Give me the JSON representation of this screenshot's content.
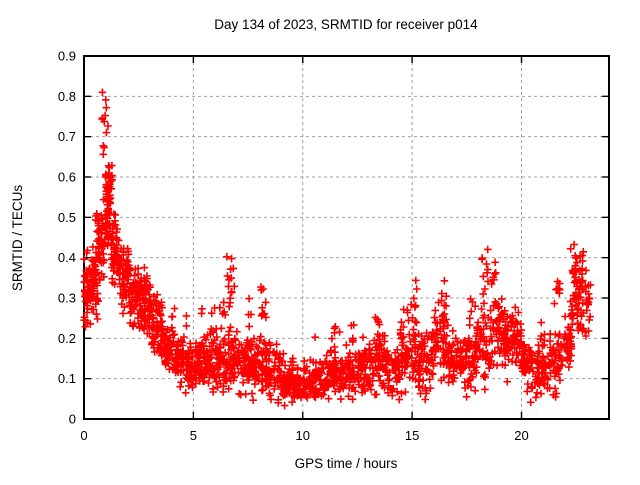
{
  "chart_data": {
    "type": "scatter",
    "title": "Day 134 of 2023, SRMTID for receiver p014",
    "xlabel": "GPS time / hours",
    "ylabel": "SRMTID / TECUs",
    "xlim": [
      0,
      24
    ],
    "ylim": [
      0,
      0.9
    ],
    "xticks": [
      {
        "value": 0,
        "label": "0"
      },
      {
        "value": 5,
        "label": "5"
      },
      {
        "value": 10,
        "label": "10"
      },
      {
        "value": 15,
        "label": "15"
      },
      {
        "value": 20,
        "label": "20"
      }
    ],
    "yticks": [
      {
        "value": 0,
        "label": "0"
      },
      {
        "value": 0.1,
        "label": "0.1"
      },
      {
        "value": 0.2,
        "label": "0.2"
      },
      {
        "value": 0.3,
        "label": "0.3"
      },
      {
        "value": 0.4,
        "label": "0.4"
      },
      {
        "value": 0.5,
        "label": "0.5"
      },
      {
        "value": 0.6,
        "label": "0.6"
      },
      {
        "value": 0.7,
        "label": "0.7"
      },
      {
        "value": 0.8,
        "label": "0.8"
      },
      {
        "value": 0.9,
        "label": "0.9"
      }
    ],
    "grid": true,
    "grid_style": "dashed",
    "legend": "none",
    "marker": "plus",
    "colors": {
      "points": "#ff0000",
      "grid": "#a0a0a0",
      "axes": "#000000",
      "background": "#ffffff",
      "text": "#000000"
    },
    "summary": {
      "points_total_approx": 2300,
      "data_span_hours": [
        0.0,
        23.15
      ],
      "overall_max": {
        "hour": 0.85,
        "value": 0.82
      },
      "high_tail_hours_0.8_to_1.1": [
        0.66,
        0.82
      ],
      "quiet_band": {
        "hours": [
          8.5,
          15.0
        ],
        "value_range": [
          0.03,
          0.18
        ]
      },
      "evening_max": {
        "hour": 22.4,
        "value": 0.45
      },
      "notable_spike_hours": [
        0.9,
        6.7,
        8.2,
        15.1,
        16.4,
        18.3,
        18.9,
        22.4
      ]
    },
    "point_cloud": {
      "bins_format": "[hour_start, hour_end, count, value_center, value_spread]",
      "bins": [
        [
          0.0,
          0.35,
          55,
          0.31,
          0.07
        ],
        [
          0.35,
          0.65,
          50,
          0.34,
          0.07
        ],
        [
          0.65,
          0.95,
          48,
          0.44,
          0.08
        ],
        [
          0.95,
          1.25,
          52,
          0.52,
          0.07
        ],
        [
          1.0,
          1.32,
          18,
          0.59,
          0.025
        ],
        [
          1.25,
          1.6,
          48,
          0.42,
          0.06
        ],
        [
          1.6,
          2.1,
          62,
          0.35,
          0.055
        ],
        [
          2.1,
          2.6,
          58,
          0.3,
          0.05
        ],
        [
          2.6,
          3.1,
          55,
          0.27,
          0.05
        ],
        [
          3.1,
          3.6,
          55,
          0.22,
          0.05
        ],
        [
          3.6,
          4.1,
          55,
          0.17,
          0.04
        ],
        [
          4.1,
          4.6,
          52,
          0.145,
          0.04
        ],
        [
          4.6,
          5.1,
          52,
          0.13,
          0.04
        ],
        [
          5.1,
          5.6,
          50,
          0.14,
          0.045
        ],
        [
          5.6,
          6.1,
          50,
          0.14,
          0.05
        ],
        [
          6.1,
          6.6,
          46,
          0.15,
          0.05
        ],
        [
          6.6,
          7.1,
          50,
          0.14,
          0.05
        ],
        [
          7.1,
          7.7,
          55,
          0.14,
          0.05
        ],
        [
          7.7,
          8.3,
          55,
          0.13,
          0.05
        ],
        [
          8.3,
          9.0,
          62,
          0.115,
          0.045
        ],
        [
          9.0,
          9.6,
          58,
          0.1,
          0.04
        ],
        [
          9.6,
          10.3,
          62,
          0.085,
          0.035
        ],
        [
          10.3,
          11.0,
          62,
          0.095,
          0.04
        ],
        [
          11.0,
          11.7,
          62,
          0.105,
          0.04
        ],
        [
          11.7,
          12.4,
          62,
          0.115,
          0.045
        ],
        [
          12.4,
          13.1,
          58,
          0.125,
          0.045
        ],
        [
          13.1,
          13.8,
          58,
          0.14,
          0.05
        ],
        [
          13.8,
          14.5,
          55,
          0.12,
          0.045
        ],
        [
          14.5,
          15.2,
          55,
          0.16,
          0.06
        ],
        [
          15.2,
          15.9,
          55,
          0.15,
          0.055
        ],
        [
          15.9,
          16.6,
          55,
          0.19,
          0.06
        ],
        [
          16.6,
          17.3,
          55,
          0.15,
          0.05
        ],
        [
          17.3,
          17.9,
          50,
          0.14,
          0.05
        ],
        [
          17.9,
          18.6,
          55,
          0.17,
          0.06
        ],
        [
          18.6,
          19.3,
          52,
          0.2,
          0.07
        ],
        [
          19.3,
          20.0,
          55,
          0.18,
          0.055
        ],
        [
          20.0,
          20.6,
          52,
          0.13,
          0.045
        ],
        [
          20.6,
          21.3,
          55,
          0.12,
          0.045
        ],
        [
          21.3,
          21.9,
          50,
          0.14,
          0.05
        ],
        [
          21.9,
          22.3,
          35,
          0.19,
          0.06
        ],
        [
          22.3,
          23.15,
          60,
          0.29,
          0.07
        ]
      ],
      "spikes_format": "[hour_start, hour_end, count, value_min, value_max]",
      "spikes": [
        [
          0.8,
          1.12,
          12,
          0.655,
          0.825
        ],
        [
          0.5,
          0.75,
          6,
          0.45,
          0.53
        ],
        [
          1.9,
          2.15,
          8,
          0.3,
          0.42
        ],
        [
          2.7,
          3.0,
          8,
          0.28,
          0.38
        ],
        [
          3.2,
          3.5,
          6,
          0.22,
          0.3
        ],
        [
          3.95,
          4.15,
          5,
          0.2,
          0.28
        ],
        [
          4.65,
          4.78,
          2,
          0.23,
          0.26
        ],
        [
          5.35,
          5.5,
          2,
          0.24,
          0.28
        ],
        [
          5.75,
          6.05,
          6,
          0.2,
          0.3
        ],
        [
          6.2,
          6.5,
          6,
          0.2,
          0.3
        ],
        [
          6.5,
          6.9,
          15,
          0.27,
          0.43
        ],
        [
          7.45,
          7.65,
          4,
          0.22,
          0.3
        ],
        [
          8.05,
          8.35,
          10,
          0.24,
          0.37
        ],
        [
          10.5,
          10.62,
          1,
          0.2,
          0.21
        ],
        [
          11.2,
          11.7,
          8,
          0.16,
          0.23
        ],
        [
          12.1,
          12.4,
          5,
          0.17,
          0.24
        ],
        [
          13.3,
          13.65,
          8,
          0.18,
          0.27
        ],
        [
          14.45,
          14.85,
          8,
          0.18,
          0.28
        ],
        [
          14.95,
          15.3,
          10,
          0.2,
          0.4
        ],
        [
          16.2,
          16.7,
          14,
          0.22,
          0.35
        ],
        [
          17.6,
          18.0,
          6,
          0.22,
          0.33
        ],
        [
          18.15,
          18.5,
          14,
          0.22,
          0.44
        ],
        [
          18.6,
          19.05,
          12,
          0.22,
          0.4
        ],
        [
          19.05,
          19.4,
          8,
          0.15,
          0.3
        ],
        [
          19.5,
          19.9,
          6,
          0.2,
          0.28
        ],
        [
          20.85,
          21.2,
          6,
          0.17,
          0.25
        ],
        [
          21.5,
          21.8,
          8,
          0.25,
          0.37
        ],
        [
          22.2,
          22.55,
          18,
          0.25,
          0.45
        ],
        [
          22.55,
          23.1,
          16,
          0.2,
          0.42
        ]
      ]
    }
  }
}
